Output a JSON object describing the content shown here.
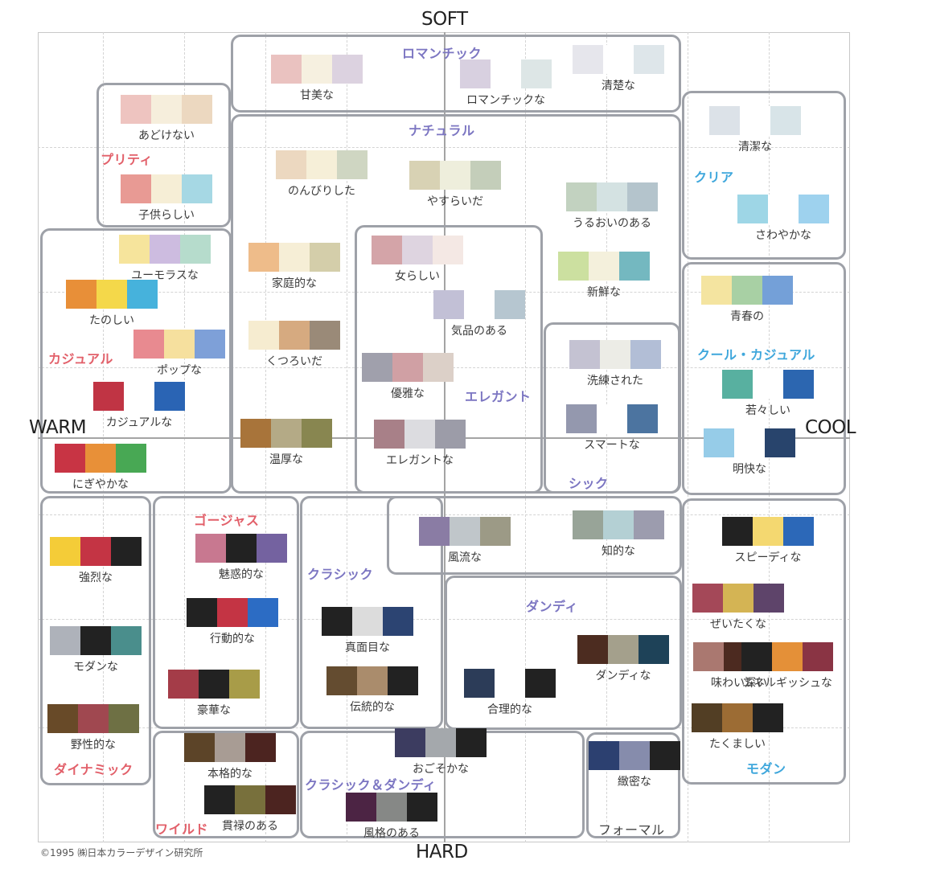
{
  "axes": {
    "top": "SOFT",
    "bottom": "HARD",
    "left": "WARM",
    "right": "COOL"
  },
  "copyright": "©1995 ㈱日本カラーデザイン研究所",
  "colors": {
    "axis": "#a4a4a4",
    "box_border": "#9ea1a8",
    "group_red": "#e2606a",
    "group_purple": "#7c76c2",
    "group_blue": "#3fa7dc"
  },
  "groups": [
    {
      "name": "ロマンチック",
      "color": "#7c76c2"
    },
    {
      "name": "ナチュラル",
      "color": "#7c76c2"
    },
    {
      "name": "プリティ",
      "color": "#e2606a"
    },
    {
      "name": "クリア",
      "color": "#3fa7dc"
    },
    {
      "name": "カジュアル",
      "color": "#e2606a"
    },
    {
      "name": "エレガント",
      "color": "#7c76c2"
    },
    {
      "name": "クール・カジュアル",
      "color": "#3fa7dc"
    },
    {
      "name": "シック",
      "color": "#7c76c2"
    },
    {
      "name": "ゴージャス",
      "color": "#e2606a"
    },
    {
      "name": "クラシック",
      "color": "#7c76c2"
    },
    {
      "name": "ダンディ",
      "color": "#7c76c2"
    },
    {
      "name": "ダイナミック",
      "color": "#e2606a"
    },
    {
      "name": "クラシック＆ダンディ",
      "color": "#7c76c2"
    },
    {
      "name": "ワイルド",
      "color": "#e2606a"
    },
    {
      "name": "モダン",
      "color": "#3fa7dc"
    },
    {
      "name": "フォーマル",
      "color": "#444444"
    }
  ],
  "palettes": [
    {
      "label": "甘美な",
      "colors": [
        "#eac2c0",
        "#f6f0e0",
        "#dcd2e0"
      ]
    },
    {
      "label": "ロマンチックな",
      "colors": [
        "#d8d0e0",
        "#ffffff",
        "#dde6e6"
      ]
    },
    {
      "label": "清楚な",
      "colors": [
        "#e6e6ec",
        "#ffffff",
        "#dee6ea"
      ]
    },
    {
      "label": "あどけない",
      "colors": [
        "#eec4c0",
        "#f6eedc",
        "#ecd8c0"
      ]
    },
    {
      "label": "子供らしい",
      "colors": [
        "#e89a94",
        "#f6eed6",
        "#a6d8e4"
      ]
    },
    {
      "label": "清潔な",
      "colors": [
        "#dce2e8",
        "#ffffff",
        "#d8e4e8"
      ]
    },
    {
      "label": "さわやかな",
      "colors": [
        "#9ed6e6",
        "#ffffff",
        "#9ed2ee"
      ]
    },
    {
      "label": "のんびりした",
      "colors": [
        "#ecd8c0",
        "#f6efd8",
        "#cfd6c2"
      ]
    },
    {
      "label": "やすらいだ",
      "colors": [
        "#d8d2b4",
        "#eeeedc",
        "#c4ceba"
      ]
    },
    {
      "label": "うるおいのある",
      "colors": [
        "#c2d2c0",
        "#d4e2e2",
        "#b4c4cc"
      ]
    },
    {
      "label": "ユーモラスな",
      "colors": [
        "#f6e49c",
        "#cdbce0",
        "#b6dccc"
      ]
    },
    {
      "label": "たのしい",
      "colors": [
        "#e88f38",
        "#f4d84a",
        "#46b2dc"
      ]
    },
    {
      "label": "ポップな",
      "colors": [
        "#e88a90",
        "#f6e09e",
        "#7ea0d8"
      ]
    },
    {
      "label": "カジュアルな",
      "colors": [
        "#c03444",
        "#ffffff",
        "#2a64b4"
      ]
    },
    {
      "label": "にぎやかな",
      "colors": [
        "#c83444",
        "#e89038",
        "#48a854"
      ]
    },
    {
      "label": "家庭的な",
      "colors": [
        "#eebc8a",
        "#f6eed6",
        "#d4ceaa"
      ]
    },
    {
      "label": "くつろいだ",
      "colors": [
        "#f6ecd0",
        "#d6aa80",
        "#9a8a78"
      ]
    },
    {
      "label": "温厚な",
      "colors": [
        "#a8743a",
        "#b4aa86",
        "#888650"
      ]
    },
    {
      "label": "女らしい",
      "colors": [
        "#d4a4a8",
        "#ded4e0",
        "#f4e8e4"
      ]
    },
    {
      "label": "気品のある",
      "colors": [
        "#c2c0d6",
        "#ffffff",
        "#b6c6d0"
      ]
    },
    {
      "label": "優雅な",
      "colors": [
        "#a0a0ac",
        "#d0a0a4",
        "#dcd0c8"
      ]
    },
    {
      "label": "エレガントな",
      "colors": [
        "#a88088",
        "#dcdce0",
        "#9c9ca8"
      ]
    },
    {
      "label": "新鮮な",
      "colors": [
        "#cce0a0",
        "#f4f0dc",
        "#74b8c0"
      ]
    },
    {
      "label": "洗練された",
      "colors": [
        "#c4c2d2",
        "#ecece6",
        "#b2bed6"
      ]
    },
    {
      "label": "スマートな",
      "colors": [
        "#9498ae",
        "#ffffff",
        "#4c74a0"
      ]
    },
    {
      "label": "青春の",
      "colors": [
        "#f4e4a0",
        "#a8d0a4",
        "#74a0d8"
      ]
    },
    {
      "label": "若々しい",
      "colors": [
        "#58b0a0",
        "#ffffff",
        "#2c66b0"
      ]
    },
    {
      "label": "明快な",
      "colors": [
        "#96cce8",
        "#ffffff",
        "#28446c"
      ]
    },
    {
      "label": "強烈な",
      "colors": [
        "#f4cc38",
        "#c43444",
        "#222222"
      ]
    },
    {
      "label": "魅惑的な",
      "colors": [
        "#c87890",
        "#222222",
        "#7462a0"
      ]
    },
    {
      "label": "風流な",
      "colors": [
        "#8a7ca4",
        "#c0c6ca",
        "#9c9a86"
      ]
    },
    {
      "label": "知的な",
      "colors": [
        "#98a498",
        "#b4d0d4",
        "#9c9cae"
      ]
    },
    {
      "label": "スピーディな",
      "colors": [
        "#222222",
        "#f4d870",
        "#2c68b8"
      ]
    },
    {
      "label": "ぜいたくな",
      "colors": [
        "#a44858",
        "#d4b454",
        "#5e446a"
      ]
    },
    {
      "label": "モダンな",
      "colors": [
        "#aeb2ba",
        "#222222",
        "#4a8e8c"
      ]
    },
    {
      "label": "行動的な",
      "colors": [
        "#222222",
        "#c43444",
        "#2c6cc4"
      ]
    },
    {
      "label": "味わい深い",
      "colors": [
        "#aa7870",
        "#4c2a20",
        "#aea09c"
      ]
    },
    {
      "label": "真面目な",
      "colors": [
        "#222222",
        "#dcdcdc",
        "#2c4472"
      ]
    },
    {
      "label": "豪華な",
      "colors": [
        "#a43c48",
        "#222222",
        "#a89c48"
      ]
    },
    {
      "label": "伝統的な",
      "colors": [
        "#644c30",
        "#aa8c6c",
        "#222222"
      ]
    },
    {
      "label": "ダンディな",
      "colors": [
        "#4c2c20",
        "#a4a08c",
        "#1e4258"
      ]
    },
    {
      "label": "合理的な",
      "colors": [
        "#2c3c58",
        "#ffffff",
        "#222222"
      ]
    },
    {
      "label": "エネルギッシュな",
      "colors": [
        "#222222",
        "#e49038",
        "#8a3444"
      ]
    },
    {
      "label": "野性的な",
      "colors": [
        "#684a28",
        "#a04850",
        "#6e7044"
      ]
    },
    {
      "label": "本格的な",
      "colors": [
        "#5c4428",
        "#a89c94",
        "#4c2420"
      ]
    },
    {
      "label": "おごそかな",
      "colors": [
        "#3c3c60",
        "#a4a8ac",
        "#222222"
      ]
    },
    {
      "label": "緻密な",
      "colors": [
        "#2c4070",
        "#868cac",
        "#222222"
      ]
    },
    {
      "label": "たくましい",
      "colors": [
        "#523e24",
        "#9c6c34",
        "#222222"
      ]
    },
    {
      "label": "貫禄のある",
      "colors": [
        "#222222",
        "#78703c",
        "#4c2420"
      ]
    },
    {
      "label": "風格のある",
      "colors": [
        "#4c2444",
        "#868886",
        "#222222"
      ]
    }
  ]
}
